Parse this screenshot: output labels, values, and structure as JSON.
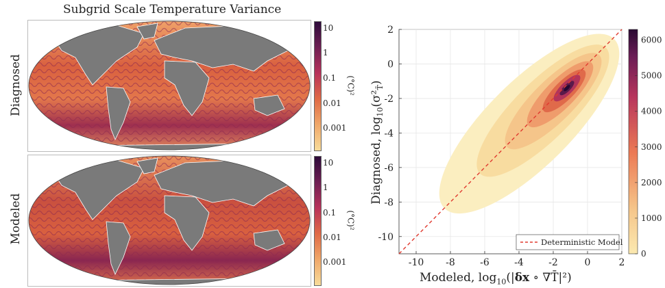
{
  "left_panel": {
    "title": "Subgrid Scale Temperature Variance",
    "maps": [
      {
        "row_label": "Diagnosed"
      },
      {
        "row_label": "Modeled"
      }
    ],
    "colorbar": {
      "ticks": [
        "10",
        "1",
        "0.1",
        "0.01",
        "0.001"
      ],
      "unit_label": "(°C)²",
      "scale": "log"
    },
    "colors": {
      "land": "#7a7a7a",
      "ocean_mid": "#d9603f",
      "ocean_high": "#7b1f4a",
      "ocean_low": "#f6d28c"
    }
  },
  "chart_data": {
    "type": "heatmap",
    "xlabel": "Modeled, log10(|δx ∘ ∇T̄|²)",
    "ylabel": "Diagnosed, log10(σ²T)",
    "xlim": [
      -11,
      2
    ],
    "ylim": [
      -11,
      2
    ],
    "x_ticks": [
      "-10",
      "-8",
      "-6",
      "-4",
      "-2",
      "0",
      "2"
    ],
    "y_ticks": [
      "2",
      "0",
      "-2",
      "-4",
      "-6",
      "-8",
      "-10"
    ],
    "grid": true,
    "density_peak": {
      "x": -1.2,
      "y": -1.4,
      "count": 6200
    },
    "colorbar": {
      "ticks": [
        "6000",
        "5000",
        "4000",
        "3000",
        "2000",
        "1000",
        "0"
      ],
      "range": [
        0,
        6300
      ]
    },
    "reference_line": {
      "name": "Deterministic Model",
      "slope": 1,
      "intercept": 0,
      "color": "#e03a2f",
      "style": "dashed"
    },
    "legend": {
      "entry": "Deterministic Model",
      "placement": "bottom-right"
    }
  }
}
